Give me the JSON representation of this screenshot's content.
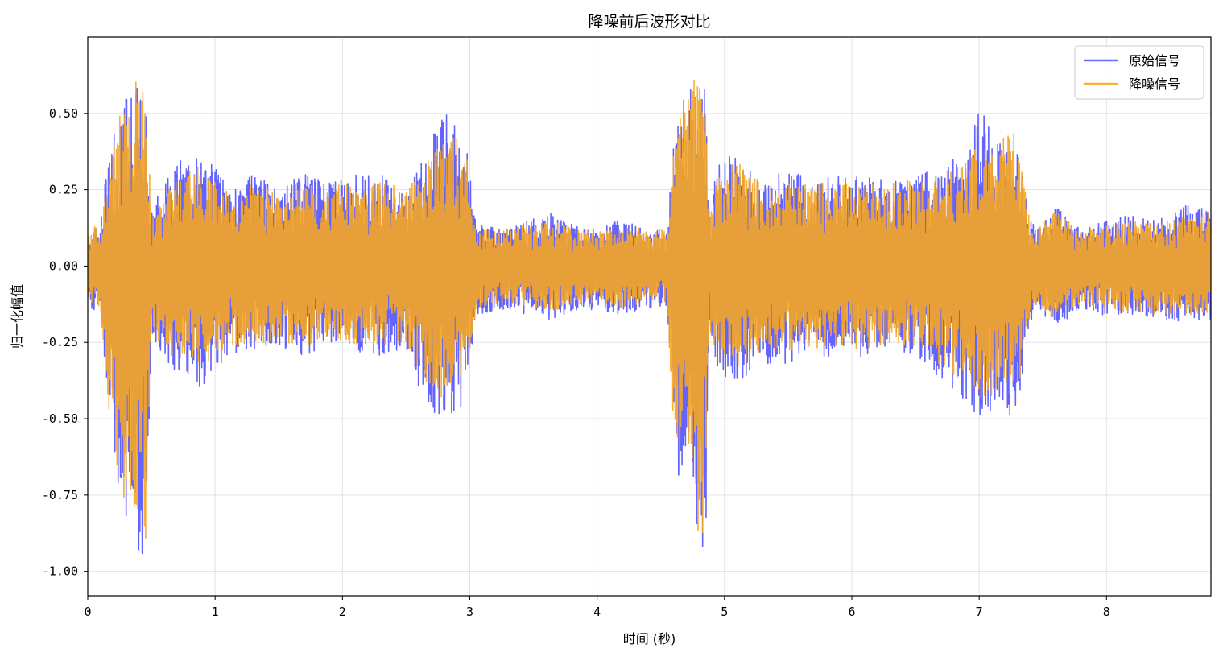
{
  "chart_data": {
    "type": "line",
    "title": "降噪前后波形对比",
    "xlabel": "时间 (秒)",
    "ylabel": "归一化幅值",
    "xlim": [
      0,
      8.82
    ],
    "ylim": [
      -1.08,
      0.75
    ],
    "x_ticks": [
      0,
      1,
      2,
      3,
      4,
      5,
      6,
      7,
      8
    ],
    "x_tick_labels": [
      "0",
      "1",
      "2",
      "3",
      "4",
      "5",
      "6",
      "7",
      "8"
    ],
    "y_ticks": [
      0.5,
      0.25,
      0.0,
      -0.25,
      -0.5,
      -0.75,
      -1.0
    ],
    "y_tick_labels": [
      "0.50",
      "0.25",
      "0.00",
      "-0.25",
      "-0.50",
      "-0.75",
      "-1.00"
    ],
    "grid": true,
    "legend_position": "top-right",
    "series": [
      {
        "name": "原始信号",
        "color": "#5b5bff",
        "envelope": {
          "x": [
            0.0,
            0.05,
            0.1,
            0.17,
            0.25,
            0.3,
            0.35,
            0.4,
            0.45,
            0.5,
            0.55,
            0.7,
            0.9,
            1.1,
            1.3,
            1.5,
            1.7,
            1.9,
            2.1,
            2.3,
            2.5,
            2.6,
            2.7,
            2.8,
            2.9,
            2.98,
            3.05,
            3.3,
            3.6,
            3.9,
            4.2,
            4.4,
            4.55,
            4.6,
            4.65,
            4.75,
            4.85,
            4.88,
            4.95,
            5.1,
            5.3,
            5.5,
            5.7,
            5.9,
            6.1,
            6.3,
            6.5,
            6.7,
            6.9,
            7.0,
            7.1,
            7.2,
            7.3,
            7.38,
            7.45,
            7.6,
            7.8,
            8.0,
            8.2,
            8.4,
            8.6,
            8.82
          ],
          "upper": [
            0.08,
            0.12,
            0.14,
            0.4,
            0.48,
            0.6,
            0.55,
            0.6,
            0.58,
            0.2,
            0.24,
            0.34,
            0.38,
            0.28,
            0.3,
            0.26,
            0.3,
            0.28,
            0.3,
            0.3,
            0.26,
            0.32,
            0.45,
            0.52,
            0.45,
            0.38,
            0.14,
            0.12,
            0.18,
            0.12,
            0.15,
            0.12,
            0.12,
            0.4,
            0.55,
            0.6,
            0.58,
            0.2,
            0.34,
            0.37,
            0.28,
            0.32,
            0.28,
            0.3,
            0.3,
            0.28,
            0.3,
            0.32,
            0.4,
            0.52,
            0.45,
            0.45,
            0.4,
            0.2,
            0.13,
            0.2,
            0.12,
            0.15,
            0.17,
            0.15,
            0.2,
            0.2
          ],
          "lower": [
            -0.12,
            -0.15,
            -0.15,
            -0.5,
            -0.75,
            -0.85,
            -0.8,
            -0.95,
            -0.98,
            -0.22,
            -0.28,
            -0.35,
            -0.4,
            -0.3,
            -0.28,
            -0.26,
            -0.3,
            -0.25,
            -0.28,
            -0.3,
            -0.28,
            -0.42,
            -0.48,
            -0.5,
            -0.5,
            -0.4,
            -0.16,
            -0.14,
            -0.18,
            -0.14,
            -0.16,
            -0.14,
            -0.14,
            -0.5,
            -0.75,
            -0.85,
            -0.98,
            -0.22,
            -0.36,
            -0.38,
            -0.32,
            -0.32,
            -0.3,
            -0.3,
            -0.3,
            -0.27,
            -0.3,
            -0.37,
            -0.45,
            -0.5,
            -0.5,
            -0.48,
            -0.5,
            -0.22,
            -0.14,
            -0.2,
            -0.14,
            -0.17,
            -0.16,
            -0.18,
            -0.18,
            -0.18
          ]
        }
      },
      {
        "name": "降噪信号",
        "color": "#f5a623",
        "envelope": {
          "x": [
            0.0,
            0.05,
            0.1,
            0.17,
            0.25,
            0.3,
            0.35,
            0.4,
            0.45,
            0.5,
            0.55,
            0.7,
            0.9,
            1.1,
            1.3,
            1.5,
            1.7,
            1.9,
            2.1,
            2.3,
            2.5,
            2.6,
            2.7,
            2.8,
            2.9,
            2.98,
            3.05,
            3.3,
            3.6,
            3.9,
            4.2,
            4.4,
            4.55,
            4.6,
            4.65,
            4.75,
            4.85,
            4.88,
            4.95,
            5.1,
            5.3,
            5.5,
            5.7,
            5.9,
            6.1,
            6.3,
            6.5,
            6.7,
            6.9,
            7.0,
            7.1,
            7.2,
            7.3,
            7.38,
            7.45,
            7.6,
            7.8,
            8.0,
            8.2,
            8.4,
            8.6,
            8.82
          ],
          "upper": [
            0.1,
            0.13,
            0.12,
            0.36,
            0.5,
            0.55,
            0.58,
            0.62,
            0.65,
            0.18,
            0.2,
            0.3,
            0.33,
            0.25,
            0.27,
            0.24,
            0.27,
            0.27,
            0.27,
            0.28,
            0.25,
            0.3,
            0.38,
            0.44,
            0.42,
            0.36,
            0.12,
            0.12,
            0.15,
            0.12,
            0.13,
            0.12,
            0.12,
            0.4,
            0.5,
            0.62,
            0.64,
            0.18,
            0.3,
            0.35,
            0.27,
            0.28,
            0.27,
            0.28,
            0.27,
            0.27,
            0.28,
            0.3,
            0.36,
            0.4,
            0.4,
            0.42,
            0.45,
            0.18,
            0.12,
            0.18,
            0.12,
            0.13,
            0.15,
            0.14,
            0.16,
            0.18
          ],
          "lower": [
            -0.1,
            -0.13,
            -0.13,
            -0.55,
            -0.72,
            -0.8,
            -0.78,
            -0.9,
            -0.96,
            -0.2,
            -0.24,
            -0.32,
            -0.34,
            -0.27,
            -0.26,
            -0.24,
            -0.27,
            -0.23,
            -0.26,
            -0.27,
            -0.25,
            -0.36,
            -0.4,
            -0.44,
            -0.42,
            -0.36,
            -0.14,
            -0.12,
            -0.15,
            -0.12,
            -0.14,
            -0.12,
            -0.12,
            -0.55,
            -0.72,
            -0.8,
            -1.0,
            -0.2,
            -0.32,
            -0.33,
            -0.28,
            -0.28,
            -0.27,
            -0.27,
            -0.27,
            -0.25,
            -0.27,
            -0.33,
            -0.4,
            -0.44,
            -0.44,
            -0.42,
            -0.44,
            -0.2,
            -0.12,
            -0.18,
            -0.12,
            -0.15,
            -0.15,
            -0.16,
            -0.16,
            -0.16
          ]
        }
      }
    ]
  }
}
